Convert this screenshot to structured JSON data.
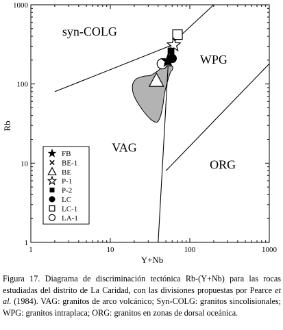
{
  "chart_data": {
    "type": "scatter",
    "x_scale": "log",
    "y_scale": "log",
    "xlim": [
      1,
      1000
    ],
    "ylim": [
      1,
      1000
    ],
    "xlabel": "Y+Nb",
    "ylabel": "Rb",
    "x_ticks": [
      {
        "value": 1,
        "label": "1"
      },
      {
        "value": 10,
        "label": "10"
      },
      {
        "value": 100,
        "label": "100"
      },
      {
        "value": 1000,
        "label": "1000"
      }
    ],
    "y_ticks": [
      {
        "value": 1,
        "label": "1"
      },
      {
        "value": 10,
        "label": "10"
      },
      {
        "value": 100,
        "label": "100"
      },
      {
        "value": 1000,
        "label": "1000"
      }
    ],
    "fields": [
      {
        "name": "syn-COLG",
        "x": 5.5,
        "y": 410
      },
      {
        "name": "WPG",
        "x": 200,
        "y": 180
      },
      {
        "name": "VAG",
        "x": 15,
        "y": 14
      },
      {
        "name": "ORG",
        "x": 260,
        "y": 8.5
      }
    ],
    "boundaries": [
      {
        "name": "syn-COLG/VAG-WPG",
        "points": [
          [
            2,
            80
          ],
          [
            55,
            300
          ]
        ]
      },
      {
        "name": "syn-COLG/WPG",
        "points": [
          [
            55,
            300
          ],
          [
            200,
            1000
          ]
        ]
      },
      {
        "name": "VAG/WPG-ORG",
        "points": [
          [
            40,
            1
          ],
          [
            55,
            300
          ]
        ]
      },
      {
        "name": "WPG/ORG",
        "points": [
          [
            50,
            8
          ],
          [
            1000,
            180
          ]
        ]
      }
    ],
    "shaded_field": [
      [
        33,
        130
      ],
      [
        45,
        160
      ],
      [
        56,
        170
      ],
      [
        61,
        165
      ],
      [
        60,
        150
      ],
      [
        57,
        140
      ],
      [
        52,
        105
      ],
      [
        48,
        75
      ],
      [
        46,
        55
      ],
      [
        43,
        40
      ],
      [
        40,
        34
      ],
      [
        37,
        33
      ],
      [
        32,
        36
      ],
      [
        25,
        48
      ],
      [
        20,
        70
      ],
      [
        19,
        95
      ],
      [
        21,
        115
      ],
      [
        26,
        125
      ]
    ],
    "series": [
      {
        "name": "FB",
        "marker": "star-filled",
        "points": [
          [
            53,
            195
          ]
        ]
      },
      {
        "name": "BE-1",
        "marker": "x",
        "points": [
          [
            52,
            195
          ]
        ]
      },
      {
        "name": "BE",
        "marker": "triangle-open",
        "points": [
          [
            38,
            110
          ]
        ]
      },
      {
        "name": "P-1",
        "marker": "star-open",
        "points": [
          [
            63,
            310
          ]
        ]
      },
      {
        "name": "P-2",
        "marker": "square-filled",
        "points": [
          [
            58,
            260
          ]
        ]
      },
      {
        "name": "LC",
        "marker": "circle-filled",
        "points": [
          [
            60,
            210
          ]
        ]
      },
      {
        "name": "LC-1",
        "marker": "square-open",
        "points": [
          [
            70,
            420
          ]
        ]
      },
      {
        "name": "LA-1",
        "marker": "circle-open",
        "points": [
          [
            45,
            180
          ]
        ]
      }
    ],
    "legend_position": "bottom-left",
    "grid": false
  },
  "caption": {
    "part1": "Figura 17. Diagrama de discriminación tectónica Rb-(Y+Nb) para las rocas estudiadas del distrito de La Caridad, con las divisiones propuestas por Pearce ",
    "italic": "et al.",
    "part2": " (1984). VAG: granitos de arco volcánico; Syn-COLG: granitos sincolisionales; WPG: granitos intraplaca; ORG: granitos en zonas de dorsal oceánica."
  }
}
